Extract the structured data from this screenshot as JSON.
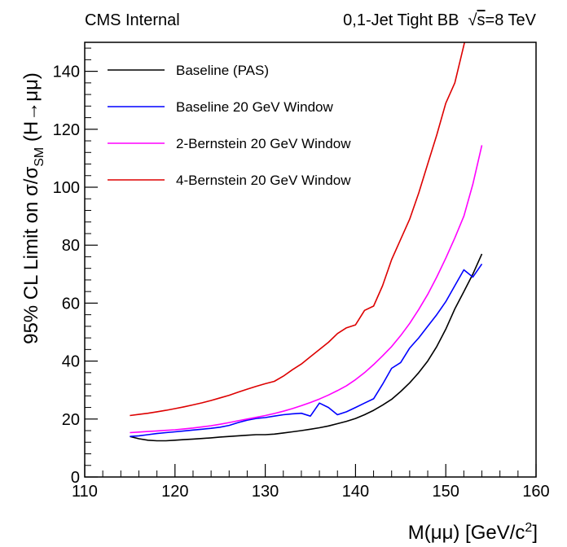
{
  "header": {
    "left": "CMS Internal",
    "right_prefix": "0,1-Jet Tight BB",
    "right_sqrt": "s",
    "right_suffix": "=8 TeV"
  },
  "colors": {
    "axis": "#000000"
  },
  "chart_data": {
    "type": "line",
    "xlabel_main": "M(μμ) [GeV/c",
    "xlabel_sup": "2",
    "xlabel_tail": "]",
    "ylabel_main": "95% CL Limit on σ/σ",
    "ylabel_sub": "SM",
    "ylabel_tail": " (H→μμ)",
    "xlim": [
      110,
      160
    ],
    "ylim": [
      0,
      150
    ],
    "x_ticks": [
      "110",
      "120",
      "130",
      "140",
      "150",
      "160"
    ],
    "y_ticks": [
      "0",
      "20",
      "40",
      "60",
      "80",
      "100",
      "120",
      "140"
    ],
    "grid": false,
    "legend_position": "top-left",
    "series": [
      {
        "name": "Baseline (PAS)",
        "color": "#000000",
        "x": [
          115,
          116,
          117,
          118,
          119,
          120,
          121,
          122,
          123,
          124,
          125,
          126,
          127,
          128,
          129,
          130,
          131,
          132,
          133,
          134,
          135,
          136,
          137,
          138,
          139,
          140,
          141,
          142,
          143,
          144,
          145,
          146,
          147,
          148,
          149,
          150,
          151,
          152,
          153,
          154
        ],
        "y": [
          14.0,
          13.2,
          12.7,
          12.5,
          12.5,
          12.7,
          12.9,
          13.1,
          13.3,
          13.5,
          13.8,
          14.0,
          14.2,
          14.4,
          14.6,
          14.6,
          14.8,
          15.2,
          15.6,
          16.0,
          16.5,
          17.0,
          17.6,
          18.4,
          19.2,
          20.2,
          21.5,
          23.0,
          24.8,
          26.8,
          29.5,
          32.5,
          36.0,
          40.0,
          45.0,
          51.0,
          58.0,
          64.0,
          70.0,
          77.0
        ]
      },
      {
        "name": "Baseline 20 GeV Window",
        "color": "#0000ff",
        "x": [
          115,
          116,
          117,
          118,
          119,
          120,
          121,
          122,
          123,
          124,
          125,
          126,
          127,
          128,
          129,
          130,
          131,
          132,
          133,
          134,
          135,
          136,
          137,
          138,
          139,
          140,
          141,
          142,
          143,
          144,
          145,
          146,
          147,
          148,
          149,
          150,
          151,
          152,
          153,
          154
        ],
        "y": [
          14.0,
          14.2,
          14.6,
          15.0,
          15.3,
          15.6,
          15.9,
          16.2,
          16.5,
          16.8,
          17.2,
          17.8,
          18.8,
          19.6,
          20.2,
          20.5,
          21.0,
          21.5,
          21.8,
          22.0,
          21.0,
          25.5,
          24.0,
          21.5,
          22.5,
          24.0,
          25.5,
          27.0,
          32.0,
          37.5,
          39.5,
          44.5,
          48.0,
          52.0,
          56.0,
          60.5,
          66.0,
          71.5,
          69.0,
          73.5
        ]
      },
      {
        "name": "2-Bernstein 20 GeV Window",
        "color": "#ff00ff",
        "x": [
          115,
          116,
          117,
          118,
          119,
          120,
          121,
          122,
          123,
          124,
          125,
          126,
          127,
          128,
          129,
          130,
          131,
          132,
          133,
          134,
          135,
          136,
          137,
          138,
          139,
          140,
          141,
          142,
          143,
          144,
          145,
          146,
          147,
          148,
          149,
          150,
          151,
          152,
          153,
          154
        ],
        "y": [
          15.3,
          15.5,
          15.7,
          15.9,
          16.1,
          16.3,
          16.6,
          16.9,
          17.3,
          17.7,
          18.2,
          18.8,
          19.4,
          20.0,
          20.6,
          21.2,
          21.9,
          22.7,
          23.6,
          24.6,
          25.7,
          26.9,
          28.3,
          29.8,
          31.5,
          33.6,
          36.0,
          38.8,
          41.8,
          45.0,
          48.8,
          53.0,
          57.8,
          63.0,
          69.0,
          75.5,
          82.5,
          90.0,
          101.0,
          114.5
        ]
      },
      {
        "name": "4-Bernstein 20 GeV Window",
        "color": "#dd0000",
        "x": [
          115,
          116,
          117,
          118,
          119,
          120,
          121,
          122,
          123,
          124,
          125,
          126,
          127,
          128,
          129,
          130,
          131,
          132,
          133,
          134,
          135,
          136,
          137,
          138,
          139,
          140,
          141,
          142,
          143,
          144,
          145,
          146,
          147,
          148,
          149,
          150,
          151,
          152,
          153
        ],
        "y": [
          21.2,
          21.6,
          22.0,
          22.5,
          23.0,
          23.6,
          24.2,
          24.9,
          25.6,
          26.4,
          27.3,
          28.2,
          29.3,
          30.3,
          31.3,
          32.2,
          33.0,
          34.8,
          37.0,
          39.0,
          41.5,
          44.0,
          46.5,
          49.5,
          51.5,
          52.5,
          57.5,
          59.0,
          66.0,
          75.0,
          82.0,
          89.0,
          98.0,
          108.0,
          118.0,
          129.0,
          136.0,
          149.0,
          162.0
        ]
      }
    ]
  }
}
